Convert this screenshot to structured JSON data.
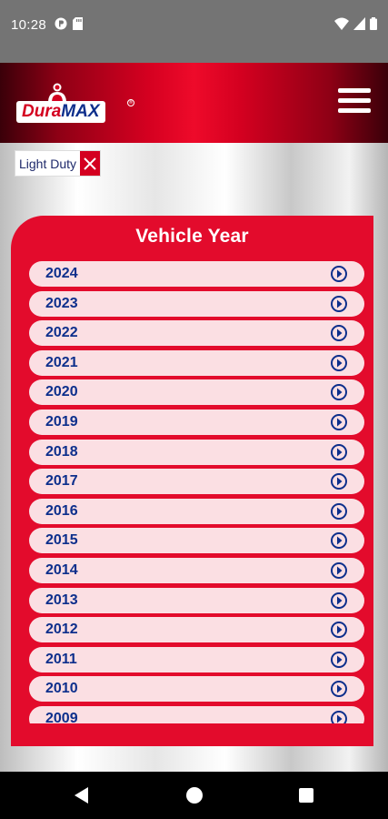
{
  "status_bar": {
    "time": "10:28",
    "icons_left": [
      "app-notification-icon",
      "sd-card-icon"
    ],
    "icons_right": [
      "wifi-icon",
      "signal-icon",
      "battery-icon"
    ]
  },
  "header": {
    "logo_dura": "Dura",
    "logo_max": "MAX",
    "logo_reg": "®",
    "menu_icon": "hamburger-menu-icon"
  },
  "filter": {
    "label": "Light Duty",
    "remove_icon": "close-icon"
  },
  "panel": {
    "title": "Vehicle Year",
    "years": [
      "2024",
      "2023",
      "2022",
      "2021",
      "2020",
      "2019",
      "2018",
      "2017",
      "2016",
      "2015",
      "2014",
      "2013",
      "2012",
      "2011",
      "2010",
      "2009"
    ]
  },
  "nav": {
    "back": "back-icon",
    "home": "home-icon",
    "recents": "recents-icon"
  },
  "colors": {
    "accent_red": "#e30b2c",
    "brand_blue": "#0d2f8c",
    "item_bg": "#fbdfe3"
  }
}
